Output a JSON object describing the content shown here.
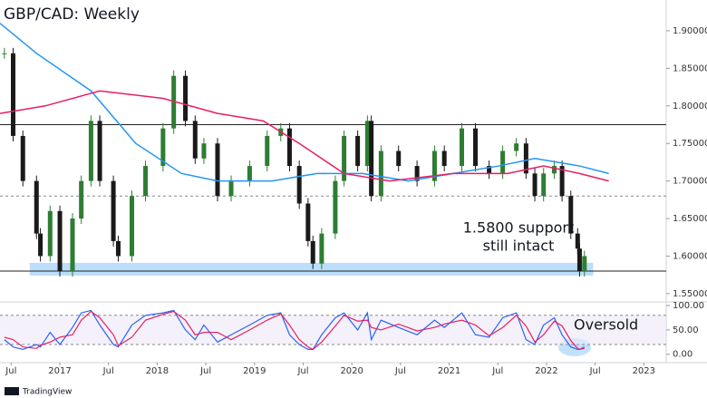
{
  "chart_data": {
    "type": "candlestick",
    "title": "GBP/CAD: Weekly",
    "annotation": "1.5800 support",
    "annotation2": "still intact",
    "oversold_label": "Oversold",
    "footer": "TradingView",
    "up_color": "#2e7d32",
    "down_color": "#1a1a1a",
    "xlim": [
      2016.385,
      2023.23
    ],
    "xticks": [
      {
        "value": 2016.5,
        "label": "Jul"
      },
      2017,
      {
        "value": 2017.5,
        "label": "Jul"
      },
      2018,
      {
        "value": 2018.5,
        "label": "Jul"
      },
      2019,
      {
        "value": 2019.5,
        "label": "Jul"
      },
      2020,
      {
        "value": 2020.5,
        "label": "Jul"
      },
      2021,
      {
        "value": 2021.5,
        "label": "Jul"
      },
      2022,
      {
        "value": 2022.5,
        "label": "Jul"
      },
      2023
    ],
    "ylim": [
      1.539,
      1.941
    ],
    "yticks": [
      {
        "value": 1.55,
        "label": "1.55000"
      },
      {
        "value": 1.6,
        "label": "1.60000"
      },
      {
        "value": 1.65,
        "label": "1.65000"
      },
      {
        "value": 1.7,
        "label": "1.70000"
      },
      {
        "value": 1.75,
        "label": "1.75000"
      },
      {
        "value": 1.8,
        "label": "1.80000"
      },
      {
        "value": 1.85,
        "label": "1.85000"
      },
      {
        "value": 1.9,
        "label": "1.90000"
      }
    ],
    "x": [
      2016.43,
      2016.52,
      2016.62,
      2016.76,
      2016.8,
      2016.9,
      2017.0,
      2017.13,
      2017.22,
      2017.32,
      2017.41,
      2017.55,
      2017.6,
      2017.74,
      2017.88,
      2018.06,
      2018.17,
      2018.29,
      2018.39,
      2018.48,
      2018.62,
      2018.76,
      2018.95,
      2019.13,
      2019.27,
      2019.36,
      2019.46,
      2019.55,
      2019.6,
      2019.69,
      2019.83,
      2019.92,
      2020.06,
      2020.16,
      2020.2,
      2020.3,
      2020.48,
      2020.67,
      2020.85,
      2020.95,
      2021.13,
      2021.27,
      2021.41,
      2021.55,
      2021.69,
      2021.79,
      2021.88,
      2021.97,
      2022.08,
      2022.16,
      2022.25,
      2022.32,
      2022.34,
      2022.39
    ],
    "close": [
      1.87,
      1.76,
      1.7,
      1.63,
      1.6,
      1.66,
      1.58,
      1.65,
      1.7,
      1.78,
      1.7,
      1.62,
      1.6,
      1.68,
      1.72,
      1.77,
      1.84,
      1.78,
      1.73,
      1.75,
      1.68,
      1.7,
      1.72,
      1.76,
      1.77,
      1.72,
      1.67,
      1.62,
      1.59,
      1.63,
      1.7,
      1.76,
      1.72,
      1.78,
      1.68,
      1.74,
      1.72,
      1.7,
      1.74,
      1.72,
      1.77,
      1.72,
      1.71,
      1.74,
      1.75,
      1.71,
      1.68,
      1.71,
      1.72,
      1.68,
      1.63,
      1.61,
      1.58,
      1.6
    ],
    "series": [
      {
        "color": "#2196f3",
        "x": [
          2016.385,
          2016.76,
          2017.32,
          2017.78,
          2018.25,
          2018.62,
          2019.18,
          2019.64,
          2020.11,
          2020.58,
          2021.04,
          2021.51,
          2021.88,
          2022.34,
          2022.64
        ],
        "values": [
          1.91,
          1.87,
          1.82,
          1.75,
          1.71,
          1.7,
          1.7,
          1.71,
          1.71,
          1.7,
          1.71,
          1.72,
          1.73,
          1.72,
          1.71
        ]
      },
      {
        "color": "#e91e63",
        "x": [
          2016.385,
          2016.85,
          2017.41,
          2018.06,
          2018.62,
          2019.09,
          2019.46,
          2019.92,
          2020.39,
          2021.04,
          2021.6,
          2021.97,
          2022.34,
          2022.64
        ],
        "values": [
          1.79,
          1.8,
          1.82,
          1.81,
          1.79,
          1.78,
          1.75,
          1.71,
          1.7,
          1.71,
          1.71,
          1.72,
          1.71,
          1.7
        ]
      }
    ],
    "levels": [
      {
        "value": 1.775,
        "style": "solid"
      },
      {
        "value": 1.68,
        "style": "dashed"
      },
      {
        "value": 1.58,
        "style": "solid"
      }
    ],
    "support_zone": {
      "x": [
        2016.69,
        2022.48
      ],
      "y": [
        1.574,
        1.591
      ],
      "color": "#bbdefb"
    },
    "oscillator": {
      "ylim": [
        -13.5,
        103.8
      ],
      "yticks": [
        {
          "value": 0,
          "label": "0.00"
        },
        {
          "value": 50,
          "label": "50.00"
        },
        {
          "value": 100,
          "label": "100.00"
        }
      ],
      "bands": [
        20,
        80
      ],
      "series": [
        {
          "color": "#2962ff",
          "values": [
            30,
            15,
            10,
            20,
            15,
            45,
            20,
            55,
            85,
            90,
            60,
            20,
            15,
            60,
            80,
            85,
            90,
            50,
            30,
            60,
            25,
            40,
            60,
            80,
            85,
            40,
            20,
            10,
            10,
            40,
            75,
            85,
            50,
            85,
            30,
            70,
            55,
            40,
            70,
            55,
            85,
            40,
            35,
            75,
            85,
            30,
            20,
            60,
            75,
            40,
            15,
            10,
            10,
            15
          ]
        },
        {
          "color": "#e91e63",
          "values": [
            35,
            30,
            15,
            12,
            18,
            25,
            35,
            40,
            70,
            88,
            75,
            40,
            18,
            35,
            70,
            82,
            88,
            70,
            40,
            45,
            45,
            30,
            50,
            70,
            83,
            60,
            30,
            15,
            10,
            25,
            58,
            80,
            68,
            70,
            55,
            50,
            62,
            48,
            55,
            62,
            70,
            60,
            38,
            55,
            80,
            58,
            25,
            40,
            68,
            58,
            28,
            12,
            10,
            12
          ]
        }
      ]
    }
  }
}
